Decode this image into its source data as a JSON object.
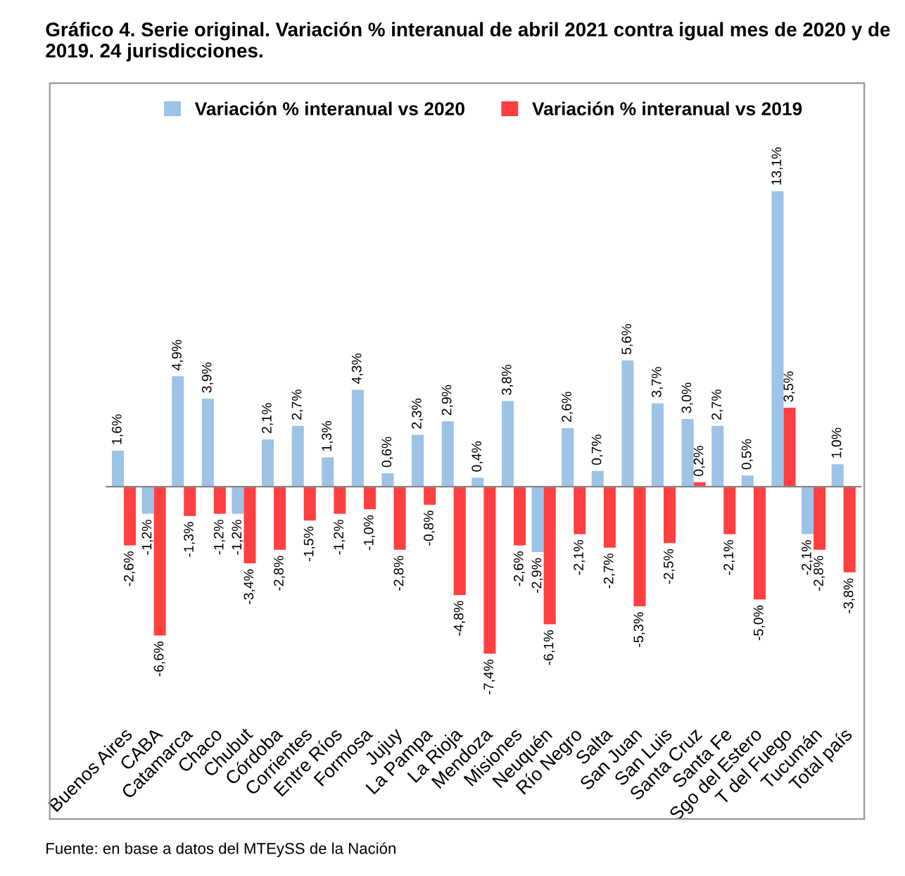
{
  "chart_data": {
    "type": "bar",
    "title": "Gráfico 4. Serie original. Variación % interanual de abril 2021 contra igual mes de 2020 y de 2019. 24 jurisdicciones.",
    "categories": [
      "Buenos Aires",
      "CABA",
      "Catamarca",
      "Chaco",
      "Chubut",
      "Córdoba",
      "Corrientes",
      "Entre Ríos",
      "Formosa",
      "Jujuy",
      "La Pampa",
      "La Rioja",
      "Mendoza",
      "Misiones",
      "Neuquén",
      "Río Negro",
      "Salta",
      "San Juan",
      "San Luis",
      "Santa Cruz",
      "Santa Fe",
      "Sgo del Estero",
      "T del Fuego",
      "Tucumán",
      "Total país"
    ],
    "series": [
      {
        "name": "Variación % interanual vs 2020",
        "color": "#9dc3e6",
        "values": [
          1.6,
          -1.2,
          4.9,
          3.9,
          -1.2,
          2.1,
          2.7,
          1.3,
          4.3,
          0.6,
          2.3,
          2.9,
          0.4,
          3.8,
          -2.9,
          2.6,
          0.7,
          5.6,
          3.7,
          3.0,
          2.7,
          0.5,
          13.1,
          -2.1,
          1.0
        ],
        "value_labels": [
          "1,6%",
          "-1,2%",
          "4,9%",
          "3,9%",
          "-1,2%",
          "2,1%",
          "2,7%",
          "1,3%",
          "4,3%",
          "0,6%",
          "2,3%",
          "2,9%",
          "0,4%",
          "3,8%",
          "-2,9%",
          "2,6%",
          "0,7%",
          "5,6%",
          "3,7%",
          "3,0%",
          "2,7%",
          "0,5%",
          "13,1%",
          "-2,1%",
          "1,0%"
        ]
      },
      {
        "name": "Variación % interanual vs 2019",
        "color": "#ff4040",
        "values": [
          -2.6,
          -6.6,
          -1.3,
          -1.2,
          -3.4,
          -2.8,
          -1.5,
          -1.2,
          -1.0,
          -2.8,
          -0.8,
          -4.8,
          -7.4,
          -2.6,
          -6.1,
          -2.1,
          -2.7,
          -5.3,
          -2.5,
          0.2,
          -2.1,
          -5.0,
          3.5,
          -2.8,
          -3.8
        ],
        "value_labels": [
          "-2,6%",
          "-6,6%",
          "-1,3%",
          "-1,2%",
          "-3,4%",
          "-2,8%",
          "-1,5%",
          "-1,2%",
          "-1,0%",
          "-2,8%",
          "-0,8%",
          "-4,8%",
          "-7,4%",
          "-2,6%",
          "-6,1%",
          "-2,1%",
          "-2,7%",
          "-5,3%",
          "-2,5%",
          "0,2%",
          "-2,1%",
          "-5,0%",
          "3,5%",
          "-2,8%",
          "-3,8%"
        ]
      }
    ],
    "legend": "top",
    "annotations": [
      "Fuente: en base a datos del MTEySS de la Nación"
    ]
  }
}
